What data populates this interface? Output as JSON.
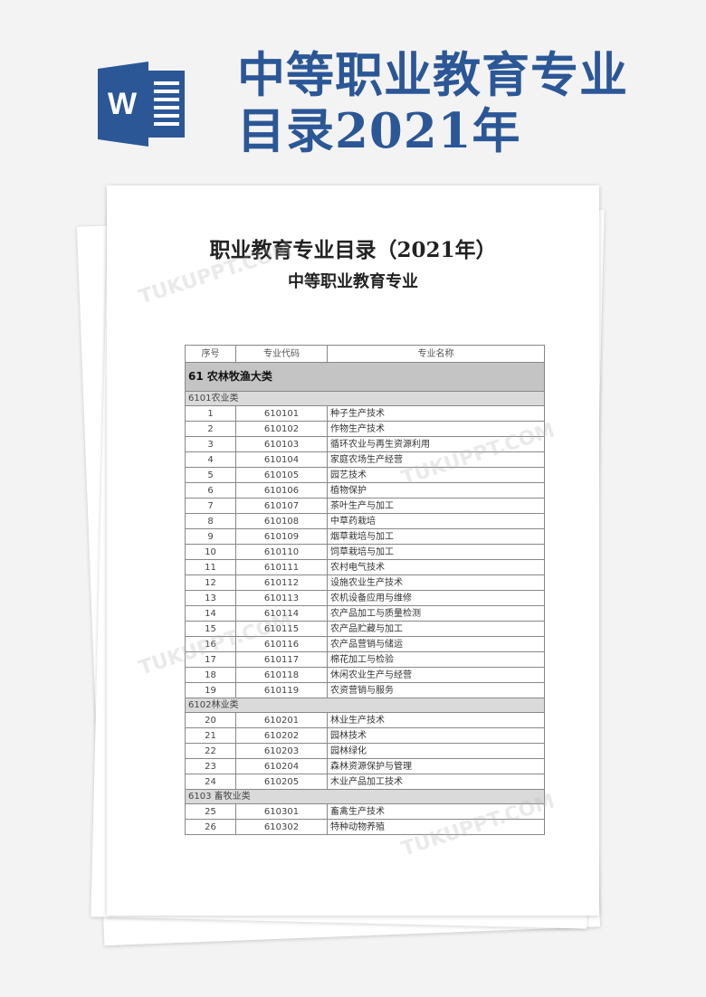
{
  "banner": {
    "title_line1": "中等职业教育专业",
    "title_line2": "目录2021年",
    "icon": "word-icon",
    "icon_letter": "W",
    "accent": "#2b5797"
  },
  "document": {
    "title": "职业教育专业目录（2021年）",
    "subtitle": "中等职业教育专业",
    "table": {
      "headers": [
        "序号",
        "专业代码",
        "专业名称"
      ],
      "sections": [
        {
          "type": "cat",
          "label": "61 农林牧渔大类"
        },
        {
          "type": "sub",
          "label": "6101农业类"
        },
        {
          "type": "row",
          "no": "1",
          "code": "610101",
          "name": "种子生产技术"
        },
        {
          "type": "row",
          "no": "2",
          "code": "610102",
          "name": "作物生产技术"
        },
        {
          "type": "row",
          "no": "3",
          "code": "610103",
          "name": "循环农业与再生资源利用"
        },
        {
          "type": "row",
          "no": "4",
          "code": "610104",
          "name": "家庭农场生产经营"
        },
        {
          "type": "row",
          "no": "5",
          "code": "610105",
          "name": "园艺技术"
        },
        {
          "type": "row",
          "no": "6",
          "code": "610106",
          "name": "植物保护"
        },
        {
          "type": "row",
          "no": "7",
          "code": "610107",
          "name": "茶叶生产与加工"
        },
        {
          "type": "row",
          "no": "8",
          "code": "610108",
          "name": "中草药栽培"
        },
        {
          "type": "row",
          "no": "9",
          "code": "610109",
          "name": "烟草栽培与加工"
        },
        {
          "type": "row",
          "no": "10",
          "code": "610110",
          "name": "饲草栽培与加工"
        },
        {
          "type": "row",
          "no": "11",
          "code": "610111",
          "name": "农村电气技术"
        },
        {
          "type": "row",
          "no": "12",
          "code": "610112",
          "name": "设施农业生产技术"
        },
        {
          "type": "row",
          "no": "13",
          "code": "610113",
          "name": "农机设备应用与维修"
        },
        {
          "type": "row",
          "no": "14",
          "code": "610114",
          "name": "农产品加工与质量检测"
        },
        {
          "type": "row",
          "no": "15",
          "code": "610115",
          "name": "农产品贮藏与加工"
        },
        {
          "type": "row",
          "no": "16",
          "code": "610116",
          "name": "农产品营销与储运"
        },
        {
          "type": "row",
          "no": "17",
          "code": "610117",
          "name": "棉花加工与检验"
        },
        {
          "type": "row",
          "no": "18",
          "code": "610118",
          "name": "休闲农业生产与经营"
        },
        {
          "type": "row",
          "no": "19",
          "code": "610119",
          "name": "农资营销与服务"
        },
        {
          "type": "sub",
          "label": "6102林业类"
        },
        {
          "type": "row",
          "no": "20",
          "code": "610201",
          "name": "林业生产技术"
        },
        {
          "type": "row",
          "no": "21",
          "code": "610202",
          "name": "园林技术"
        },
        {
          "type": "row",
          "no": "22",
          "code": "610203",
          "name": "园林绿化"
        },
        {
          "type": "row",
          "no": "23",
          "code": "610204",
          "name": "森林资源保护与管理"
        },
        {
          "type": "row",
          "no": "24",
          "code": "610205",
          "name": "木业产品加工技术"
        },
        {
          "type": "sub",
          "label": "6103 畜牧业类"
        },
        {
          "type": "row",
          "no": "25",
          "code": "610301",
          "name": "畜禽生产技术"
        },
        {
          "type": "row",
          "no": "26",
          "code": "610302",
          "name": "特种动物养殖"
        }
      ]
    }
  }
}
